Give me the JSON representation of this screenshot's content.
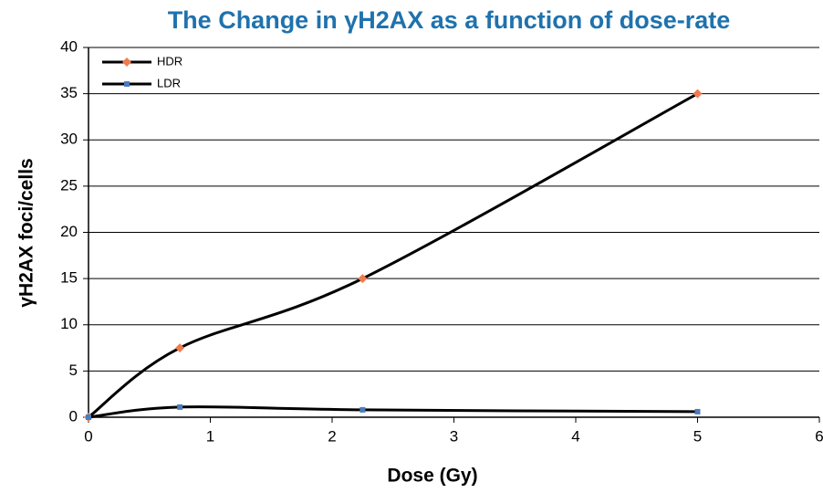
{
  "chart_data": {
    "type": "line",
    "title": "The Change in γH2AX as a function of dose-rate",
    "x_label": "Dose (Gy)",
    "y_label": "γH2AX foci/cells",
    "x": [
      0,
      0.75,
      2.25,
      5
    ],
    "series": [
      {
        "name": "HDR",
        "color": "#f07b4f",
        "marker": "diamond",
        "values": [
          0,
          7.5,
          15,
          35
        ]
      },
      {
        "name": "LDR",
        "color": "#4a7cc0",
        "marker": "square",
        "values": [
          0,
          1.1,
          0.8,
          0.6
        ]
      }
    ],
    "line_color": "#000000",
    "smooth": true,
    "xlim": [
      0,
      6
    ],
    "xticks": [
      0,
      1,
      2,
      3,
      4,
      5,
      6
    ],
    "ylim": [
      0,
      40
    ],
    "yticks": [
      0,
      5,
      10,
      15,
      20,
      25,
      30,
      35,
      40
    ],
    "grid": true,
    "legend": "upper left"
  }
}
